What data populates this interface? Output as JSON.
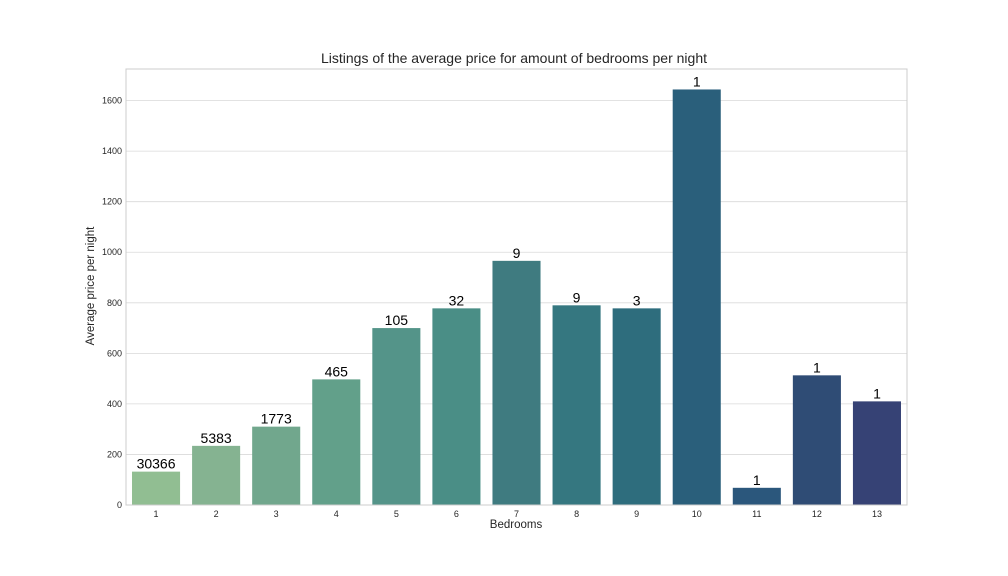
{
  "chart_data": {
    "type": "bar",
    "title": "Listings of the average price for amount of bedrooms per night",
    "xlabel": "Bedrooms",
    "ylabel": "Average price per night",
    "categories": [
      "1",
      "2",
      "3",
      "4",
      "5",
      "6",
      "7",
      "8",
      "9",
      "10",
      "11",
      "12",
      "13"
    ],
    "values": [
      132,
      234,
      310,
      497,
      700,
      778,
      966,
      790,
      778,
      1644,
      68,
      513,
      410
    ],
    "bar_labels": [
      "30366",
      "5383",
      "1773",
      "465",
      "105",
      "32",
      "9",
      "9",
      "3",
      "1",
      "1",
      "1",
      "1"
    ],
    "ylim": [
      0,
      1725
    ],
    "yticks": [
      0,
      200,
      400,
      600,
      800,
      1000,
      1200,
      1400,
      1600
    ],
    "grid": true,
    "colors": [
      "#91BE92",
      "#85B391",
      "#71A78D",
      "#62A08A",
      "#549489",
      "#4A8E86",
      "#3F7B80",
      "#357780",
      "#2E6D7D",
      "#2A5F7B",
      "#2B577C",
      "#2F4C75",
      "#364275"
    ]
  }
}
